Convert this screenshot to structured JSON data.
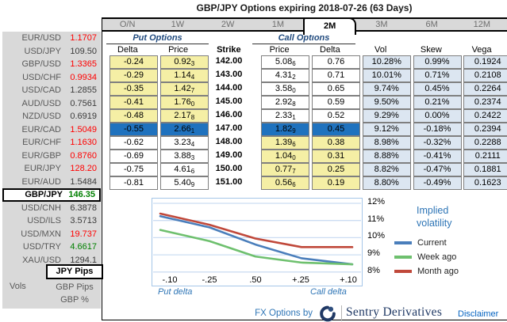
{
  "title": "GBP/JPY Options expiring 2018-07-26 (63 Days)",
  "tabs": [
    "O/N",
    "1W",
    "2W",
    "1M",
    "2M",
    "3M",
    "6M",
    "12M"
  ],
  "selected_tab": "2M",
  "sidebar": {
    "pairs": [
      {
        "label": "EUR/USD",
        "value": "1.1707",
        "color": "red",
        "selected": false
      },
      {
        "label": "USD/JPY",
        "value": "109.50",
        "color": "dark",
        "selected": false
      },
      {
        "label": "GBP/USD",
        "value": "1.3365",
        "color": "red",
        "selected": false
      },
      {
        "label": "USD/CHF",
        "value": "0.9934",
        "color": "red",
        "selected": false
      },
      {
        "label": "USD/CAD",
        "value": "1.2855",
        "color": "dark",
        "selected": false
      },
      {
        "label": "AUD/USD",
        "value": "0.7561",
        "color": "dark",
        "selected": false
      },
      {
        "label": "NZD/USD",
        "value": "0.6919",
        "color": "dark",
        "selected": false
      },
      {
        "label": "EUR/CAD",
        "value": "1.5049",
        "color": "red",
        "selected": false
      },
      {
        "label": "EUR/CHF",
        "value": "1.1630",
        "color": "red",
        "selected": false
      },
      {
        "label": "EUR/GBP",
        "value": "0.8760",
        "color": "red",
        "selected": false
      },
      {
        "label": "EUR/JPY",
        "value": "128.20",
        "color": "red",
        "selected": false
      },
      {
        "label": "EUR/AUD",
        "value": "1.5484",
        "color": "dark",
        "selected": false
      },
      {
        "label": "GBP/JPY",
        "value": "146.35",
        "color": "green",
        "selected": true
      },
      {
        "label": "USD/CNH",
        "value": "6.3878",
        "color": "dark",
        "selected": false
      },
      {
        "label": "USD/ILS",
        "value": "3.5713",
        "color": "dark",
        "selected": false
      },
      {
        "label": "USD/MXN",
        "value": "19.737",
        "color": "red",
        "selected": false
      },
      {
        "label": "USD/TRY",
        "value": "4.6617",
        "color": "green",
        "selected": false
      },
      {
        "label": "XAU/USD",
        "value": "1294.1",
        "color": "dark",
        "selected": false
      }
    ],
    "vols_label": "Vols",
    "vol_modes": [
      {
        "label": "JPY Pips",
        "selected": true
      },
      {
        "label": "GBP Pips",
        "selected": false
      },
      {
        "label": "GBP %",
        "selected": false
      }
    ]
  },
  "table": {
    "put_group_label": "Put Options",
    "call_group_label": "Call Options",
    "headers": [
      "Delta",
      "Price",
      "Strike",
      "Price",
      "Delta",
      "Vol",
      "Skew",
      "Vega"
    ],
    "atm_index": 5,
    "rows": [
      {
        "put_delta": "-0.24",
        "put_price": "0.92",
        "put_price_sub": "3",
        "strike": "142.00",
        "call_price": "5.08",
        "call_price_sub": "6",
        "call_delta": "0.76",
        "vol": "10.28%",
        "skew": "0.99%",
        "vega": "0.1924"
      },
      {
        "put_delta": "-0.29",
        "put_price": "1.14",
        "put_price_sub": "4",
        "strike": "143.00",
        "call_price": "4.31",
        "call_price_sub": "2",
        "call_delta": "0.71",
        "vol": "10.01%",
        "skew": "0.71%",
        "vega": "0.2108"
      },
      {
        "put_delta": "-0.35",
        "put_price": "1.42",
        "put_price_sub": "7",
        "strike": "144.00",
        "call_price": "3.58",
        "call_price_sub": "0",
        "call_delta": "0.65",
        "vol": "9.74%",
        "skew": "0.45%",
        "vega": "0.2264"
      },
      {
        "put_delta": "-0.41",
        "put_price": "1.76",
        "put_price_sub": "0",
        "strike": "145.00",
        "call_price": "2.92",
        "call_price_sub": "8",
        "call_delta": "0.59",
        "vol": "9.50%",
        "skew": "0.21%",
        "vega": "0.2374"
      },
      {
        "put_delta": "-0.48",
        "put_price": "2.17",
        "put_price_sub": "8",
        "strike": "146.00",
        "call_price": "2.33",
        "call_price_sub": "1",
        "call_delta": "0.52",
        "vol": "9.29%",
        "skew": "0.00%",
        "vega": "0.2422"
      },
      {
        "put_delta": "-0.55",
        "put_price": "2.66",
        "put_price_sub": "1",
        "strike": "147.00",
        "call_price": "1.82",
        "call_price_sub": "9",
        "call_delta": "0.45",
        "vol": "9.12%",
        "skew": "-0.18%",
        "vega": "0.2394"
      },
      {
        "put_delta": "-0.62",
        "put_price": "3.23",
        "put_price_sub": "4",
        "strike": "148.00",
        "call_price": "1.39",
        "call_price_sub": "6",
        "call_delta": "0.38",
        "vol": "8.98%",
        "skew": "-0.32%",
        "vega": "0.2288"
      },
      {
        "put_delta": "-0.69",
        "put_price": "3.88",
        "put_price_sub": "3",
        "strike": "149.00",
        "call_price": "1.04",
        "call_price_sub": "0",
        "call_delta": "0.31",
        "vol": "8.88%",
        "skew": "-0.41%",
        "vega": "0.2111"
      },
      {
        "put_delta": "-0.75",
        "put_price": "4.61",
        "put_price_sub": "6",
        "strike": "150.00",
        "call_price": "0.77",
        "call_price_sub": "7",
        "call_delta": "0.25",
        "vol": "8.82%",
        "skew": "-0.47%",
        "vega": "0.1881"
      },
      {
        "put_delta": "-0.81",
        "put_price": "5.40",
        "put_price_sub": "9",
        "strike": "151.00",
        "call_price": "0.56",
        "call_price_sub": "6",
        "call_delta": "0.19",
        "vol": "8.80%",
        "skew": "-0.49%",
        "vega": "0.1623"
      }
    ]
  },
  "chart_data": {
    "type": "line",
    "x_labels": [
      "-.10",
      "-.25",
      ".50",
      "+.25",
      "+.10"
    ],
    "y_ticks": [
      "12%",
      "11%",
      "10%",
      "9%",
      "8%"
    ],
    "y_tick_values": [
      12,
      11,
      10,
      9,
      8
    ],
    "ylim": [
      7.1,
      12.3
    ],
    "series": [
      {
        "name": "Current",
        "color": "#4A7EBB",
        "values": [
          11.25,
          10.6,
          9.6,
          8.8,
          8.45
        ]
      },
      {
        "name": "Week ago",
        "color": "#6EC06E",
        "values": [
          10.45,
          9.8,
          8.9,
          8.55,
          8.45
        ]
      },
      {
        "name": "Month ago",
        "color": "#C0483A",
        "values": [
          11.4,
          10.75,
          9.95,
          9.45,
          9.45
        ]
      }
    ],
    "legend_title": "Implied volatility",
    "x_axis_left_label": "Put delta",
    "x_axis_right_label": "Call delta",
    "grid": true,
    "legend_position": "right"
  },
  "footer": {
    "byline": "FX Options by",
    "brand": "Sentry Derivatives",
    "disclaimer": "Disclaimer"
  },
  "colors": {
    "up": "#008000",
    "down": "#FF0000",
    "put_cell_yellow": "#F5EFA5",
    "atm_row_blue": "#1F72BE",
    "vol_cell_blue": "#DCE6F1",
    "sidebar_gray": "#D9D9D9"
  }
}
